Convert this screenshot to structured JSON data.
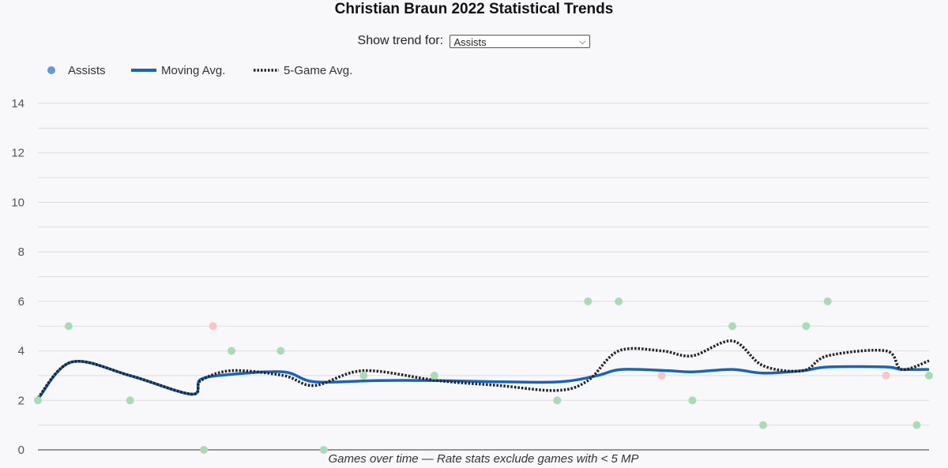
{
  "page": {
    "title": "Christian Braun 2022 Statistical Trends",
    "trend_label": "Show trend for:",
    "trend_selected": "Assists",
    "chevron_icon": "chevron-down-icon"
  },
  "chart_data": {
    "type": "scatter",
    "title": "Christian Braun 2022 Statistical Trends",
    "xlabel": "Games over time — Rate stats exclude games with < 5 MP",
    "ylabel": "",
    "ylim": [
      0,
      14
    ],
    "yticks": [
      0,
      2,
      4,
      6,
      8,
      10,
      12,
      14
    ],
    "grid": true,
    "legend_position": "top-left",
    "legend": [
      "Assists",
      "Moving Avg.",
      "5-Game Avg."
    ],
    "colors": {
      "assists_legend": "#5b9bd5",
      "above": "#a8dcb4",
      "below": "#f7c6c6",
      "moving_avg": "#1565c0",
      "five_game_avg": "#222222"
    },
    "x_range": [
      1,
      30
    ],
    "points": [
      {
        "x": 1,
        "y": 2,
        "status": "above"
      },
      {
        "x": 2,
        "y": 5,
        "status": "above"
      },
      {
        "x": 4,
        "y": 2,
        "status": "above"
      },
      {
        "x": 6.4,
        "y": 0,
        "status": "above"
      },
      {
        "x": 6.7,
        "y": 5,
        "status": "below"
      },
      {
        "x": 7.3,
        "y": 4,
        "status": "above"
      },
      {
        "x": 8.9,
        "y": 4,
        "status": "above"
      },
      {
        "x": 10.3,
        "y": 0,
        "status": "above"
      },
      {
        "x": 11.6,
        "y": 3,
        "status": "above"
      },
      {
        "x": 13.9,
        "y": 3,
        "status": "above"
      },
      {
        "x": 17.9,
        "y": 2,
        "status": "above"
      },
      {
        "x": 18.9,
        "y": 6,
        "status": "above"
      },
      {
        "x": 19.9,
        "y": 6,
        "status": "above"
      },
      {
        "x": 21.3,
        "y": 3,
        "status": "below"
      },
      {
        "x": 22.3,
        "y": 2,
        "status": "above"
      },
      {
        "x": 23.6,
        "y": 5,
        "status": "above"
      },
      {
        "x": 24.6,
        "y": 1,
        "status": "above"
      },
      {
        "x": 26,
        "y": 5,
        "status": "above"
      },
      {
        "x": 26.7,
        "y": 6,
        "status": "above"
      },
      {
        "x": 28.6,
        "y": 3,
        "status": "below"
      },
      {
        "x": 29.6,
        "y": 1,
        "status": "above"
      },
      {
        "x": 30,
        "y": 3,
        "status": "above"
      }
    ],
    "series": [
      {
        "name": "Moving Avg.",
        "x": [
          1,
          2.1,
          4,
          6.0,
          6.3,
          7.3,
          9.0,
          10.0,
          12.0,
          14.0,
          16.0,
          18.0,
          19.2,
          20.0,
          21.5,
          22.3,
          23.6,
          24.6,
          25.9,
          26.7,
          28.6,
          29.1,
          30
        ],
        "values": [
          2.05,
          3.55,
          3.0,
          2.25,
          2.85,
          3.05,
          3.15,
          2.75,
          2.8,
          2.8,
          2.75,
          2.75,
          3.0,
          3.25,
          3.2,
          3.15,
          3.25,
          3.1,
          3.2,
          3.35,
          3.35,
          3.25,
          3.25
        ]
      },
      {
        "name": "5-Game Avg.",
        "x": [
          1,
          2.1,
          4,
          6.0,
          6.3,
          7.3,
          9.0,
          10.0,
          11.6,
          14.0,
          16.0,
          17.9,
          18.9,
          19.9,
          21.3,
          22.3,
          23.6,
          24.6,
          25.9,
          26.7,
          28.6,
          29.1,
          30
        ],
        "values": [
          2.1,
          3.55,
          3.0,
          2.25,
          2.8,
          3.2,
          3.0,
          2.6,
          3.2,
          2.8,
          2.6,
          2.4,
          2.8,
          4.0,
          4.0,
          3.8,
          4.4,
          3.4,
          3.2,
          3.8,
          4.0,
          3.25,
          3.6
        ]
      }
    ]
  }
}
